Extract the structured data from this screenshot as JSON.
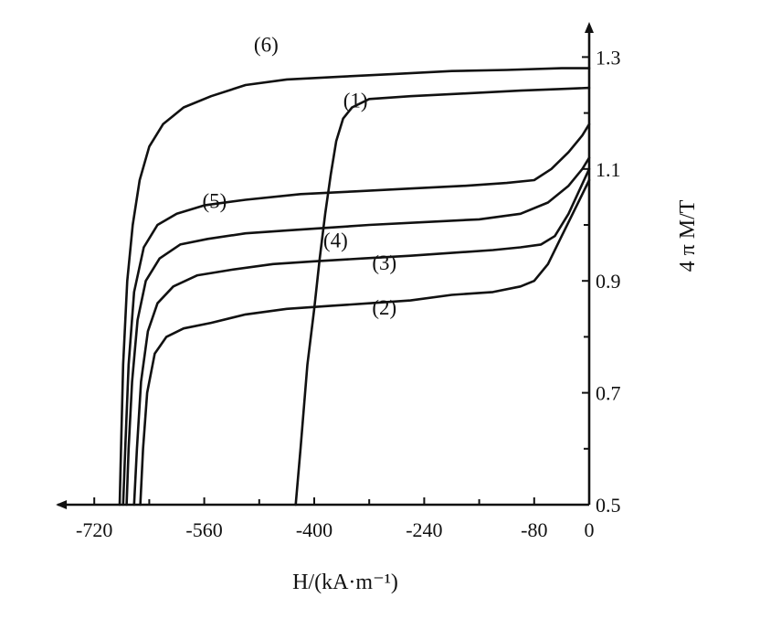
{
  "chart_data": {
    "type": "line",
    "title": "",
    "xlabel": "H/(kA·m⁻¹)",
    "ylabel": "4 π M/T",
    "xlim": [
      -760,
      0
    ],
    "ylim": [
      0.5,
      1.33
    ],
    "x_ticks": [
      -720,
      -560,
      -400,
      -240,
      -80,
      0
    ],
    "x_tick_labels": [
      "-720",
      "-560",
      "-400",
      "-240",
      "-80",
      "0"
    ],
    "y_ticks": [
      0.5,
      0.7,
      0.9,
      1.1,
      1.3
    ],
    "y_tick_labels": [
      "0.5",
      "0.7",
      "0.9",
      "1.1",
      "1.3"
    ],
    "grid": false,
    "legend": "none",
    "series": [
      {
        "label": "(6)",
        "label_at": [
          -470,
          1.31
        ],
        "points": [
          [
            -683,
            0.5
          ],
          [
            -681,
            0.6
          ],
          [
            -678,
            0.75
          ],
          [
            -672,
            0.9
          ],
          [
            -664,
            1.0
          ],
          [
            -654,
            1.08
          ],
          [
            -640,
            1.14
          ],
          [
            -620,
            1.18
          ],
          [
            -590,
            1.21
          ],
          [
            -550,
            1.23
          ],
          [
            -500,
            1.25
          ],
          [
            -440,
            1.26
          ],
          [
            -360,
            1.265
          ],
          [
            -280,
            1.27
          ],
          [
            -200,
            1.275
          ],
          [
            -120,
            1.277
          ],
          [
            -40,
            1.28
          ],
          [
            0,
            1.28
          ]
        ]
      },
      {
        "label": "(1)",
        "label_at": [
          -340,
          1.21
        ],
        "points": [
          [
            -427,
            0.5
          ],
          [
            -420,
            0.6
          ],
          [
            -410,
            0.75
          ],
          [
            -400,
            0.85
          ],
          [
            -392,
            0.94
          ],
          [
            -384,
            1.02
          ],
          [
            -376,
            1.09
          ],
          [
            -368,
            1.15
          ],
          [
            -358,
            1.19
          ],
          [
            -345,
            1.21
          ],
          [
            -320,
            1.225
          ],
          [
            -260,
            1.23
          ],
          [
            -180,
            1.235
          ],
          [
            -100,
            1.24
          ],
          [
            -40,
            1.243
          ],
          [
            0,
            1.245
          ]
        ]
      },
      {
        "label": "(5)",
        "label_at": [
          -545,
          1.03
        ],
        "points": [
          [
            -678,
            0.5
          ],
          [
            -675,
            0.6
          ],
          [
            -670,
            0.75
          ],
          [
            -662,
            0.88
          ],
          [
            -648,
            0.96
          ],
          [
            -628,
            1.0
          ],
          [
            -600,
            1.02
          ],
          [
            -560,
            1.035
          ],
          [
            -500,
            1.045
          ],
          [
            -420,
            1.055
          ],
          [
            -340,
            1.06
          ],
          [
            -260,
            1.065
          ],
          [
            -180,
            1.07
          ],
          [
            -120,
            1.075
          ],
          [
            -80,
            1.08
          ],
          [
            -55,
            1.1
          ],
          [
            -30,
            1.13
          ],
          [
            -10,
            1.16
          ],
          [
            0,
            1.18
          ]
        ]
      },
      {
        "label": "(4)",
        "label_at": [
          -369,
          0.96
        ],
        "points": [
          [
            -673,
            0.5
          ],
          [
            -670,
            0.6
          ],
          [
            -665,
            0.72
          ],
          [
            -657,
            0.83
          ],
          [
            -645,
            0.9
          ],
          [
            -625,
            0.94
          ],
          [
            -595,
            0.965
          ],
          [
            -555,
            0.975
          ],
          [
            -500,
            0.985
          ],
          [
            -440,
            0.99
          ],
          [
            -380,
            0.995
          ],
          [
            -320,
            1.0
          ],
          [
            -240,
            1.005
          ],
          [
            -160,
            1.01
          ],
          [
            -100,
            1.02
          ],
          [
            -60,
            1.04
          ],
          [
            -30,
            1.07
          ],
          [
            -10,
            1.1
          ],
          [
            0,
            1.12
          ]
        ]
      },
      {
        "label": "(3)",
        "label_at": [
          -298,
          0.92
        ],
        "points": [
          [
            -662,
            0.5
          ],
          [
            -658,
            0.6
          ],
          [
            -652,
            0.72
          ],
          [
            -642,
            0.81
          ],
          [
            -628,
            0.86
          ],
          [
            -605,
            0.89
          ],
          [
            -570,
            0.91
          ],
          [
            -520,
            0.92
          ],
          [
            -460,
            0.93
          ],
          [
            -400,
            0.935
          ],
          [
            -330,
            0.94
          ],
          [
            -260,
            0.945
          ],
          [
            -200,
            0.95
          ],
          [
            -140,
            0.955
          ],
          [
            -100,
            0.96
          ],
          [
            -70,
            0.965
          ],
          [
            -50,
            0.98
          ],
          [
            -30,
            1.02
          ],
          [
            -15,
            1.06
          ],
          [
            0,
            1.1
          ]
        ]
      },
      {
        "label": "(2)",
        "label_at": [
          -298,
          0.84
        ],
        "points": [
          [
            -653,
            0.5
          ],
          [
            -649,
            0.6
          ],
          [
            -643,
            0.7
          ],
          [
            -632,
            0.77
          ],
          [
            -615,
            0.8
          ],
          [
            -590,
            0.815
          ],
          [
            -550,
            0.825
          ],
          [
            -500,
            0.84
          ],
          [
            -440,
            0.85
          ],
          [
            -380,
            0.855
          ],
          [
            -320,
            0.86
          ],
          [
            -260,
            0.865
          ],
          [
            -200,
            0.875
          ],
          [
            -140,
            0.88
          ],
          [
            -100,
            0.89
          ],
          [
            -80,
            0.9
          ],
          [
            -60,
            0.93
          ],
          [
            -40,
            0.98
          ],
          [
            -20,
            1.03
          ],
          [
            0,
            1.08
          ]
        ]
      }
    ]
  }
}
